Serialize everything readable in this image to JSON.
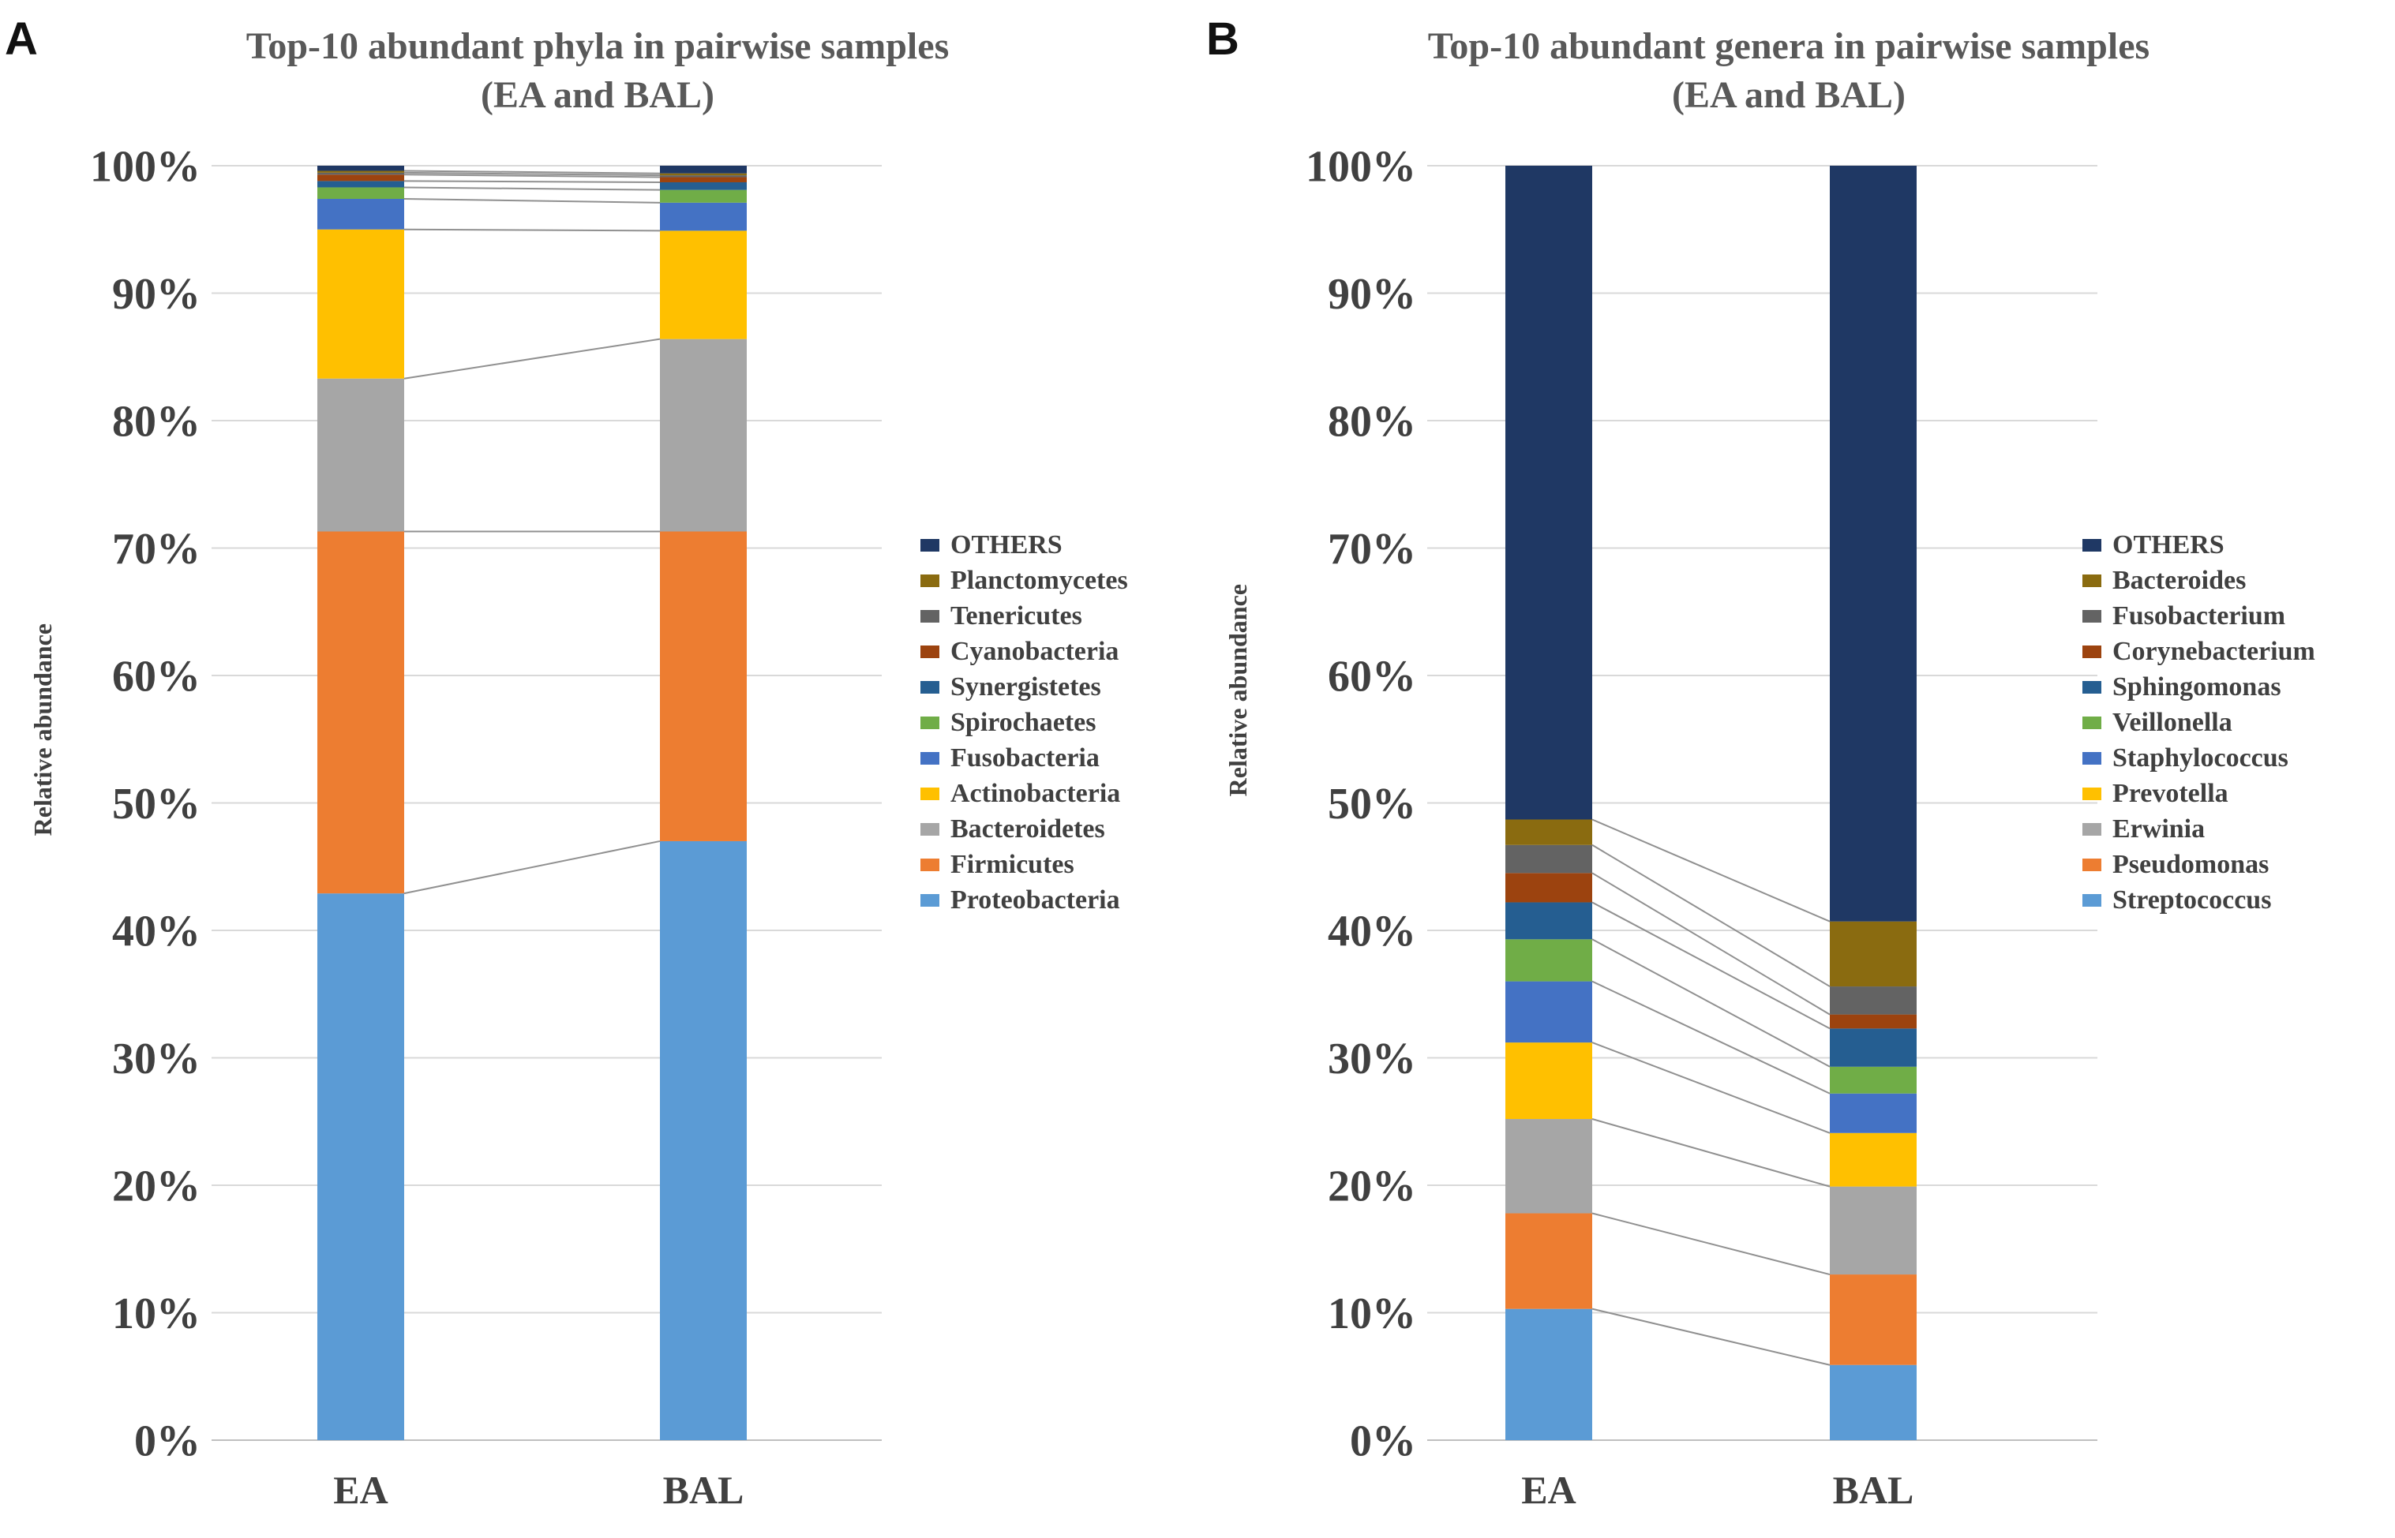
{
  "figure": {
    "panels": [
      {
        "panel_label": "A",
        "title_line1": "Top-10 abundant phyla in pairwise samples",
        "title_line2": "(EA and BAL)",
        "y_axis_label": "Relative abundance"
      },
      {
        "panel_label": "B",
        "title_line1": "Top-10 abundant genera in pairwise samples",
        "title_line2": "(EA and BAL)",
        "y_axis_label": "Relative abundance"
      }
    ],
    "grid_color": "#D9D9D9",
    "axis_line_color": "#BFBFBF",
    "connector_color": "#909090",
    "text_color": "#404040"
  },
  "chart_data": [
    {
      "type": "bar",
      "stacked": true,
      "title": "Top-10 abundant phyla in pairwise samples (EA and BAL)",
      "ylabel": "Relative abundance",
      "ylim": [
        0,
        100
      ],
      "grid": true,
      "legend_position": "right",
      "y_tick_labels": [
        "100%",
        "90%",
        "80%",
        "70%",
        "60%",
        "50%",
        "40%",
        "30%",
        "20%",
        "10%",
        "0%"
      ],
      "categories": [
        "EA",
        "BAL"
      ],
      "series_bottom_to_top": [
        {
          "name": "Proteobacteria",
          "color": "#5B9BD5",
          "values": [
            42.9,
            47.0
          ]
        },
        {
          "name": "Firmicutes",
          "color": "#ED7D31",
          "values": [
            28.4,
            24.3
          ]
        },
        {
          "name": "Bacteroidetes",
          "color": "#A6A6A6",
          "values": [
            12.0,
            15.1
          ]
        },
        {
          "name": "Actinobacteria",
          "color": "#FFC000",
          "values": [
            11.7,
            8.5
          ]
        },
        {
          "name": "Fusobacteria",
          "color": "#4472C4",
          "values": [
            2.4,
            2.2
          ]
        },
        {
          "name": "Spirochaetes",
          "color": "#70AD47",
          "values": [
            0.9,
            1.0
          ]
        },
        {
          "name": "Synergistetes",
          "color": "#255E91",
          "values": [
            0.5,
            0.6
          ]
        },
        {
          "name": "Cyanobacteria",
          "color": "#9C430F",
          "values": [
            0.5,
            0.4
          ]
        },
        {
          "name": "Tenericutes",
          "color": "#636363",
          "values": [
            0.15,
            0.15
          ]
        },
        {
          "name": "Planctomycetes",
          "color": "#8A6B10",
          "values": [
            0.15,
            0.15
          ]
        },
        {
          "name": "OTHERS",
          "color": "#1F3864",
          "values": [
            0.4,
            0.6
          ]
        }
      ]
    },
    {
      "type": "bar",
      "stacked": true,
      "title": "Top-10 abundant genera in pairwise samples (EA and BAL)",
      "ylabel": "Relative abundance",
      "ylim": [
        0,
        100
      ],
      "grid": true,
      "legend_position": "right",
      "y_tick_labels": [
        "100%",
        "90%",
        "80%",
        "70%",
        "60%",
        "50%",
        "40%",
        "30%",
        "20%",
        "10%",
        "0%"
      ],
      "categories": [
        "EA",
        "BAL"
      ],
      "series_bottom_to_top": [
        {
          "name": "Streptococcus",
          "color": "#5B9BD5",
          "values": [
            10.3,
            5.9
          ]
        },
        {
          "name": "Pseudomonas",
          "color": "#ED7D31",
          "values": [
            7.5,
            7.1
          ]
        },
        {
          "name": "Erwinia",
          "color": "#A6A6A6",
          "values": [
            7.4,
            6.9
          ]
        },
        {
          "name": "Prevotella",
          "color": "#FFC000",
          "values": [
            6.0,
            4.2
          ]
        },
        {
          "name": "Staphylococcus",
          "color": "#4472C4",
          "values": [
            4.8,
            3.1
          ]
        },
        {
          "name": "Veillonella",
          "color": "#70AD47",
          "values": [
            3.3,
            2.1
          ]
        },
        {
          "name": "Sphingomonas",
          "color": "#255E91",
          "values": [
            2.9,
            3.0
          ]
        },
        {
          "name": "Corynebacterium",
          "color": "#9C430F",
          "values": [
            2.3,
            1.1
          ]
        },
        {
          "name": "Fusobacterium",
          "color": "#636363",
          "values": [
            2.2,
            2.2
          ]
        },
        {
          "name": "Bacteroides",
          "color": "#8A6B10",
          "values": [
            2.0,
            5.1
          ]
        },
        {
          "name": "OTHERS",
          "color": "#1F3864",
          "values": [
            51.3,
            59.3
          ]
        }
      ]
    }
  ]
}
